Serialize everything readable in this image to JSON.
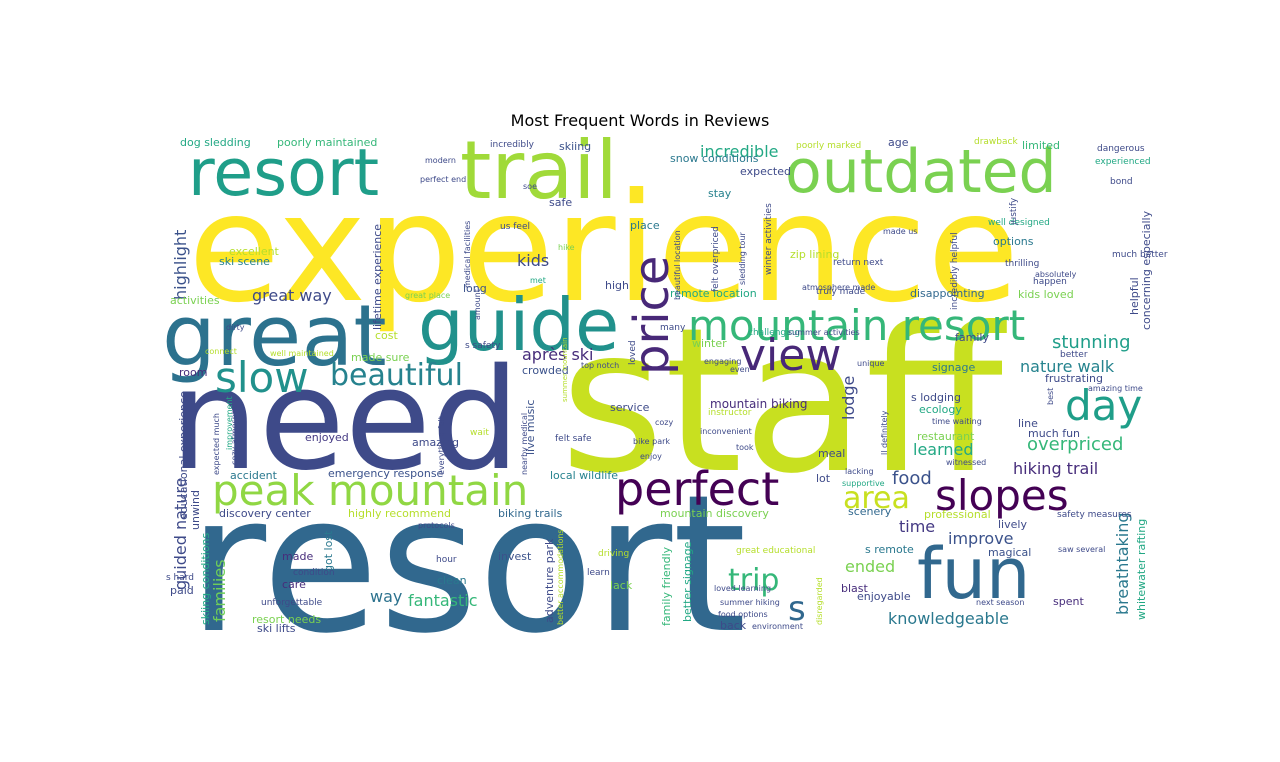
{
  "title": "Most Frequent Words in Reviews",
  "words": [
    {
      "text": "experience",
      "color": "#fde725"
    },
    {
      "text": "resort",
      "color": "#31688e"
    },
    {
      "text": "staff",
      "color": "#c8e020"
    },
    {
      "text": "need",
      "color": "#3e4a89"
    },
    {
      "text": "great",
      "color": "#2c728e"
    },
    {
      "text": "guide",
      "color": "#21918c"
    },
    {
      "text": "trail",
      "color": "#a0da39"
    },
    {
      "text": "outdated",
      "color": "#7ad151"
    },
    {
      "text": "resort",
      "color": "#1f9e89"
    },
    {
      "text": "mountain resort",
      "color": "#35b779"
    },
    {
      "text": "peak mountain",
      "color": "#90d743"
    },
    {
      "text": "fun",
      "color": "#31688e"
    },
    {
      "text": "slopes",
      "color": "#440154"
    },
    {
      "text": "perfect",
      "color": "#440154"
    },
    {
      "text": "day",
      "color": "#1f9e89"
    },
    {
      "text": "view",
      "color": "#482878"
    },
    {
      "text": "price",
      "color": "#482878"
    },
    {
      "text": "slow",
      "color": "#21918c"
    },
    {
      "text": "beautiful",
      "color": "#26828e"
    },
    {
      "text": "area",
      "color": "#c8e020"
    },
    {
      "text": "trip",
      "color": "#35b779"
    },
    {
      "text": "s",
      "color": "#31688e"
    },
    {
      "text": "hiking trail",
      "color": "#472d7b"
    },
    {
      "text": "stunning",
      "color": "#1f9e89"
    },
    {
      "text": "nature walk",
      "color": "#25838e"
    },
    {
      "text": "overpriced",
      "color": "#35b779"
    },
    {
      "text": "breathtaking",
      "color": "#2a788e"
    },
    {
      "text": "knowledgeable",
      "color": "#2a788e"
    },
    {
      "text": "fantastic",
      "color": "#35b779"
    },
    {
      "text": "improve",
      "color": "#3b528b"
    },
    {
      "text": "ended",
      "color": "#7ad151"
    },
    {
      "text": "food",
      "color": "#3b528b"
    },
    {
      "text": "learned",
      "color": "#22a884"
    },
    {
      "text": "guided nature",
      "color": "#3e4a89"
    },
    {
      "text": "families",
      "color": "#6ece58"
    },
    {
      "text": "way",
      "color": "#2c728e"
    },
    {
      "text": "time",
      "color": "#443983"
    },
    {
      "text": "après ski",
      "color": "#472d7b"
    },
    {
      "text": "great way",
      "color": "#3e4a89"
    },
    {
      "text": "kids",
      "color": "#3e4a89"
    },
    {
      "text": "incredible",
      "color": "#22a884"
    },
    {
      "text": "highlight",
      "color": "#3b528b"
    },
    {
      "text": "lodge",
      "color": "#3e4a89"
    },
    {
      "text": "mountain biking",
      "color": "#472d7b"
    },
    {
      "text": "dog sledding",
      "color": "#22a884"
    },
    {
      "text": "poorly maintained",
      "color": "#35b779"
    },
    {
      "text": "skiing",
      "color": "#3b528b"
    },
    {
      "text": "snow conditions",
      "color": "#2a788e"
    },
    {
      "text": "expected",
      "color": "#3e4a89"
    },
    {
      "text": "stay",
      "color": "#26828e"
    },
    {
      "text": "age",
      "color": "#3e4a89"
    },
    {
      "text": "limited",
      "color": "#35b779"
    },
    {
      "text": "options",
      "color": "#2a788e"
    },
    {
      "text": "zip lining",
      "color": "#b5de2b"
    },
    {
      "text": "disappointing",
      "color": "#31688e"
    },
    {
      "text": "kids loved",
      "color": "#7ad151"
    },
    {
      "text": "remote location",
      "color": "#22a884"
    },
    {
      "text": "excellent",
      "color": "#b5de2b"
    },
    {
      "text": "ski scene",
      "color": "#26828e"
    },
    {
      "text": "activities",
      "color": "#7ad151"
    },
    {
      "text": "safe",
      "color": "#3e4a89"
    },
    {
      "text": "place",
      "color": "#2a788e"
    },
    {
      "text": "high",
      "color": "#3e4a89"
    },
    {
      "text": "long",
      "color": "#3b528b"
    },
    {
      "text": "cost",
      "color": "#b5de2b"
    },
    {
      "text": "made sure",
      "color": "#7ad151"
    },
    {
      "text": "crowded",
      "color": "#3b528b"
    },
    {
      "text": "live music",
      "color": "#3b528b"
    },
    {
      "text": "winter",
      "color": "#7ad151"
    },
    {
      "text": "service",
      "color": "#3e4a89"
    },
    {
      "text": "room",
      "color": "#472d7b"
    },
    {
      "text": "enjoyed",
      "color": "#443983"
    },
    {
      "text": "amazing",
      "color": "#3e4a89"
    },
    {
      "text": "accident",
      "color": "#2a788e"
    },
    {
      "text": "emergency response",
      "color": "#3b528b"
    },
    {
      "text": "local wildlife",
      "color": "#26828e"
    },
    {
      "text": "discovery center",
      "color": "#3e4a89"
    },
    {
      "text": "highly recommend",
      "color": "#b5de2b"
    },
    {
      "text": "biking trails",
      "color": "#31688e"
    },
    {
      "text": "mountain discovery",
      "color": "#7ad151"
    },
    {
      "text": "made",
      "color": "#472d7b"
    },
    {
      "text": "got lost",
      "color": "#2a788e"
    },
    {
      "text": "invest",
      "color": "#3b528b"
    },
    {
      "text": "clean",
      "color": "#2a788e"
    },
    {
      "text": "lack",
      "color": "#7ad151"
    },
    {
      "text": "care",
      "color": "#472d7b"
    },
    {
      "text": "paid",
      "color": "#3e4a89"
    },
    {
      "text": "resort needs",
      "color": "#7ad151"
    },
    {
      "text": "ski lifts",
      "color": "#3e4a89"
    },
    {
      "text": "skiing conditions",
      "color": "#22a884"
    },
    {
      "text": "adventure park",
      "color": "#3e4a89"
    },
    {
      "text": "family friendly",
      "color": "#35b779"
    },
    {
      "text": "better signage",
      "color": "#22a884"
    },
    {
      "text": "back",
      "color": "#3e4a89"
    },
    {
      "text": "blast",
      "color": "#472d7b"
    },
    {
      "text": "enjoyable",
      "color": "#3e4a89"
    },
    {
      "text": "spent",
      "color": "#472d7b"
    },
    {
      "text": "s remote",
      "color": "#2a788e"
    },
    {
      "text": "magical",
      "color": "#3b528b"
    },
    {
      "text": "professional",
      "color": "#b5de2b"
    },
    {
      "text": "lively",
      "color": "#3e4a89"
    },
    {
      "text": "scenery",
      "color": "#31688e"
    },
    {
      "text": "lot",
      "color": "#3e4a89"
    },
    {
      "text": "meal",
      "color": "#3e4a89"
    },
    {
      "text": "restaurant",
      "color": "#7ad151"
    },
    {
      "text": "much fun",
      "color": "#3e4a89"
    },
    {
      "text": "line",
      "color": "#3e4a89"
    },
    {
      "text": "ecology",
      "color": "#22a884"
    },
    {
      "text": "s lodging",
      "color": "#3e4a89"
    },
    {
      "text": "signage",
      "color": "#2a788e"
    },
    {
      "text": "family",
      "color": "#3e4a89"
    },
    {
      "text": "frustrating",
      "color": "#3e4a89"
    },
    {
      "text": "helpful",
      "color": "#3e4a89"
    },
    {
      "text": "concerning especially",
      "color": "#3e4a89"
    },
    {
      "text": "whitewater rafting",
      "color": "#22a884"
    },
    {
      "text": "educational experience",
      "color": "#3e4a89"
    },
    {
      "text": "unwind",
      "color": "#3e4a89"
    },
    {
      "text": "lifetime experience",
      "color": "#3e4a89"
    },
    {
      "text": "thrilling",
      "color": "#3e4a89"
    },
    {
      "text": "much better",
      "color": "#3e4a89"
    },
    {
      "text": "incredibly",
      "color": "#3e4a89"
    },
    {
      "text": "poorly marked",
      "color": "#b5de2b"
    },
    {
      "text": "drawback",
      "color": "#b5de2b"
    },
    {
      "text": "dangerous",
      "color": "#3e4a89"
    },
    {
      "text": "experienced",
      "color": "#22a884"
    },
    {
      "text": "bond",
      "color": "#3e4a89"
    },
    {
      "text": "modern",
      "color": "#3e4a89"
    },
    {
      "text": "perfect end",
      "color": "#3e4a89"
    },
    {
      "text": "soe",
      "color": "#3e4a89"
    },
    {
      "text": "us feel",
      "color": "#3e4a89"
    },
    {
      "text": "hike",
      "color": "#7ad151"
    },
    {
      "text": "met",
      "color": "#22a884"
    },
    {
      "text": "great place",
      "color": "#7ad151"
    },
    {
      "text": "truly made",
      "color": "#3e4a89"
    },
    {
      "text": "made us",
      "color": "#3e4a89"
    },
    {
      "text": "return next",
      "color": "#3e4a89"
    },
    {
      "text": "well designed",
      "color": "#22a884"
    },
    {
      "text": "happen",
      "color": "#3e4a89"
    },
    {
      "text": "absolutely",
      "color": "#3e4a89"
    },
    {
      "text": "amazing time",
      "color": "#3e4a89"
    },
    {
      "text": "better",
      "color": "#3e4a89"
    },
    {
      "text": "unique",
      "color": "#3e4a89"
    },
    {
      "text": "engaging",
      "color": "#3e4a89"
    },
    {
      "text": "even",
      "color": "#3e4a89"
    },
    {
      "text": "top notch",
      "color": "#3e4a89"
    },
    {
      "text": "s safety",
      "color": "#3e4a89"
    },
    {
      "text": "challenging",
      "color": "#22a884"
    },
    {
      "text": "summer activities",
      "color": "#3e4a89"
    },
    {
      "text": "instructor",
      "color": "#b5de2b"
    },
    {
      "text": "cozy",
      "color": "#3e4a89"
    },
    {
      "text": "inconvenient",
      "color": "#3e4a89"
    },
    {
      "text": "took",
      "color": "#3e4a89"
    },
    {
      "text": "time waiting",
      "color": "#3e4a89"
    },
    {
      "text": "witnessed",
      "color": "#3e4a89"
    },
    {
      "text": "lacking",
      "color": "#3e4a89"
    },
    {
      "text": "supportive",
      "color": "#22a884"
    },
    {
      "text": "safety measures",
      "color": "#3e4a89"
    },
    {
      "text": "saw several",
      "color": "#3e4a89"
    },
    {
      "text": "next season",
      "color": "#3e4a89"
    },
    {
      "text": "environment",
      "color": "#3e4a89"
    },
    {
      "text": "summer hiking",
      "color": "#3e4a89"
    },
    {
      "text": "food options",
      "color": "#3e4a89"
    },
    {
      "text": "loved learning",
      "color": "#3e4a89"
    },
    {
      "text": "great educational",
      "color": "#b5de2b"
    },
    {
      "text": "driving",
      "color": "#b5de2b"
    },
    {
      "text": "learn",
      "color": "#3e4a89"
    },
    {
      "text": "hour",
      "color": "#3e4a89"
    },
    {
      "text": "protocols",
      "color": "#3e4a89"
    },
    {
      "text": "condition",
      "color": "#3e4a89"
    },
    {
      "text": "unforgettable",
      "color": "#3e4a89"
    },
    {
      "text": "s hard",
      "color": "#3e4a89"
    },
    {
      "text": "felt safe",
      "color": "#3e4a89"
    },
    {
      "text": "bike park",
      "color": "#3e4a89"
    },
    {
      "text": "enjoy",
      "color": "#3e4a89"
    },
    {
      "text": "wait",
      "color": "#b5de2b"
    },
    {
      "text": "well maintained",
      "color": "#b5de2b"
    },
    {
      "text": "connect",
      "color": "#b5de2b"
    },
    {
      "text": "dirty",
      "color": "#3e4a89"
    },
    {
      "text": "cozy atmosphere",
      "color": "#3e4a89"
    },
    {
      "text": "expected much",
      "color": "#3e4a89"
    },
    {
      "text": "improvement",
      "color": "#22a884"
    },
    {
      "text": "amount",
      "color": "#3e4a89"
    },
    {
      "text": "medical facilities",
      "color": "#3e4a89"
    },
    {
      "text": "beautiful location",
      "color": "#3e4a89"
    },
    {
      "text": "felt overpriced",
      "color": "#3e4a89"
    },
    {
      "text": "sledding tour",
      "color": "#3e4a89"
    },
    {
      "text": "winter activities",
      "color": "#3e4a89"
    },
    {
      "text": "justify",
      "color": "#3e4a89"
    },
    {
      "text": "incredibly helpful",
      "color": "#3e4a89"
    },
    {
      "text": "atmosphere made",
      "color": "#3e4a89"
    },
    {
      "text": "best",
      "color": "#3e4a89"
    },
    {
      "text": "ll definitely",
      "color": "#3e4a89"
    },
    {
      "text": "nearby medical",
      "color": "#3e4a89"
    },
    {
      "text": "everything felt",
      "color": "#3e4a89"
    },
    {
      "text": "summer mountain",
      "color": "#b5de2b"
    },
    {
      "text": "loved",
      "color": "#3e4a89"
    },
    {
      "text": "many",
      "color": "#3e4a89"
    },
    {
      "text": "better accommodations",
      "color": "#b5de2b"
    },
    {
      "text": "disregarded",
      "color": "#b5de2b"
    }
  ]
}
